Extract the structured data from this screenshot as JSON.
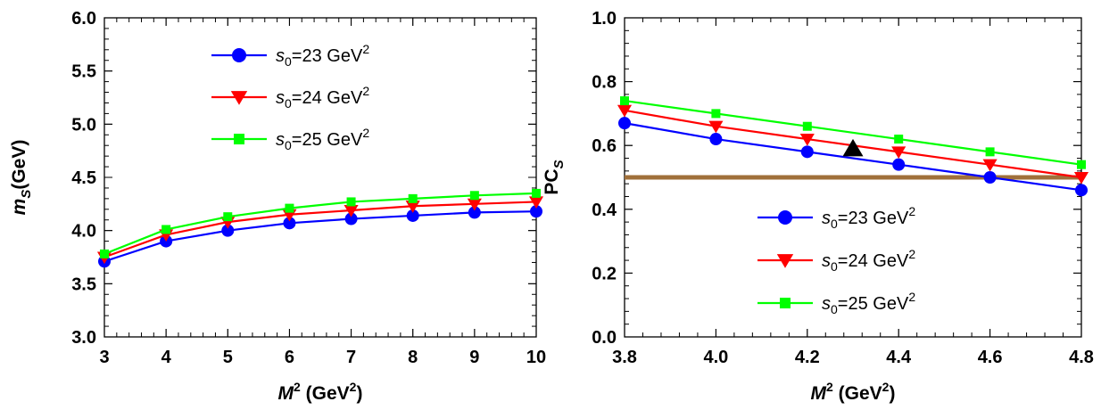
{
  "chart_data": [
    {
      "type": "line",
      "title": "",
      "xlabel": {
        "main": "M",
        "sup": "2",
        "units": " (GeV",
        "units_sup": "2",
        "units_end": ")"
      },
      "ylabel": {
        "main": "m",
        "sub": "S",
        "units": "(GeV)"
      },
      "xlim": [
        3,
        10
      ],
      "ylim": [
        3.0,
        6.0
      ],
      "xticks": [
        "3",
        "4",
        "5",
        "6",
        "7",
        "8",
        "9",
        "10"
      ],
      "yticks": [
        "3.0",
        "3.5",
        "4.0",
        "4.5",
        "5.0",
        "5.5",
        "6.0"
      ],
      "grid": false,
      "legend_position": "top-center",
      "x": [
        3,
        4,
        5,
        6,
        7,
        8,
        9,
        10
      ],
      "series": [
        {
          "name": {
            "base": "s",
            "sub": "0",
            "rest": "=23 GeV",
            "sup": "2"
          },
          "color": "#0000ff",
          "marker": "circle",
          "values": [
            3.71,
            3.9,
            4.0,
            4.07,
            4.11,
            4.14,
            4.17,
            4.18
          ]
        },
        {
          "name": {
            "base": "s",
            "sub": "0",
            "rest": "=24 GeV",
            "sup": "2"
          },
          "color": "#ff0000",
          "marker": "triangle-down",
          "values": [
            3.75,
            3.96,
            4.08,
            4.15,
            4.19,
            4.23,
            4.25,
            4.27
          ]
        },
        {
          "name": {
            "base": "s",
            "sub": "0",
            "rest": "=25 GeV",
            "sup": "2"
          },
          "color": "#00ff00",
          "marker": "square",
          "values": [
            3.78,
            4.01,
            4.13,
            4.21,
            4.27,
            4.3,
            4.33,
            4.35
          ]
        }
      ]
    },
    {
      "type": "line",
      "title": "",
      "xlabel": {
        "main": "M",
        "sup": "2",
        "units": " (GeV",
        "units_sup": "2",
        "units_end": ")"
      },
      "ylabel": {
        "main": "PC",
        "sub": "S"
      },
      "xlim": [
        3.8,
        4.8
      ],
      "ylim": [
        0.0,
        1.0
      ],
      "xticks": [
        "3.8",
        "4.0",
        "4.2",
        "4.4",
        "4.6",
        "4.8"
      ],
      "yticks": [
        "0.0",
        "0.2",
        "0.4",
        "0.6",
        "0.8",
        "1.0"
      ],
      "grid": false,
      "legend_position": "bottom-center",
      "x": [
        3.8,
        4.0,
        4.2,
        4.4,
        4.6,
        4.8
      ],
      "series": [
        {
          "name": {
            "base": "s",
            "sub": "0",
            "rest": "=23 GeV",
            "sup": "2"
          },
          "color": "#0000ff",
          "marker": "circle",
          "values": [
            0.67,
            0.62,
            0.58,
            0.54,
            0.5,
            0.46
          ]
        },
        {
          "name": {
            "base": "s",
            "sub": "0",
            "rest": "=24 GeV",
            "sup": "2"
          },
          "color": "#ff0000",
          "marker": "triangle-down",
          "values": [
            0.71,
            0.66,
            0.62,
            0.58,
            0.54,
            0.5
          ]
        },
        {
          "name": {
            "base": "s",
            "sub": "0",
            "rest": "=25 GeV",
            "sup": "2"
          },
          "color": "#00ff00",
          "marker": "square",
          "values": [
            0.74,
            0.7,
            0.66,
            0.62,
            0.58,
            0.54
          ]
        }
      ],
      "reference_line": {
        "y": 0.5,
        "color": "#a0703a"
      },
      "annotation_marker": {
        "x": 4.3,
        "y": 0.59,
        "shape": "triangle-up",
        "color": "#000000"
      }
    }
  ]
}
